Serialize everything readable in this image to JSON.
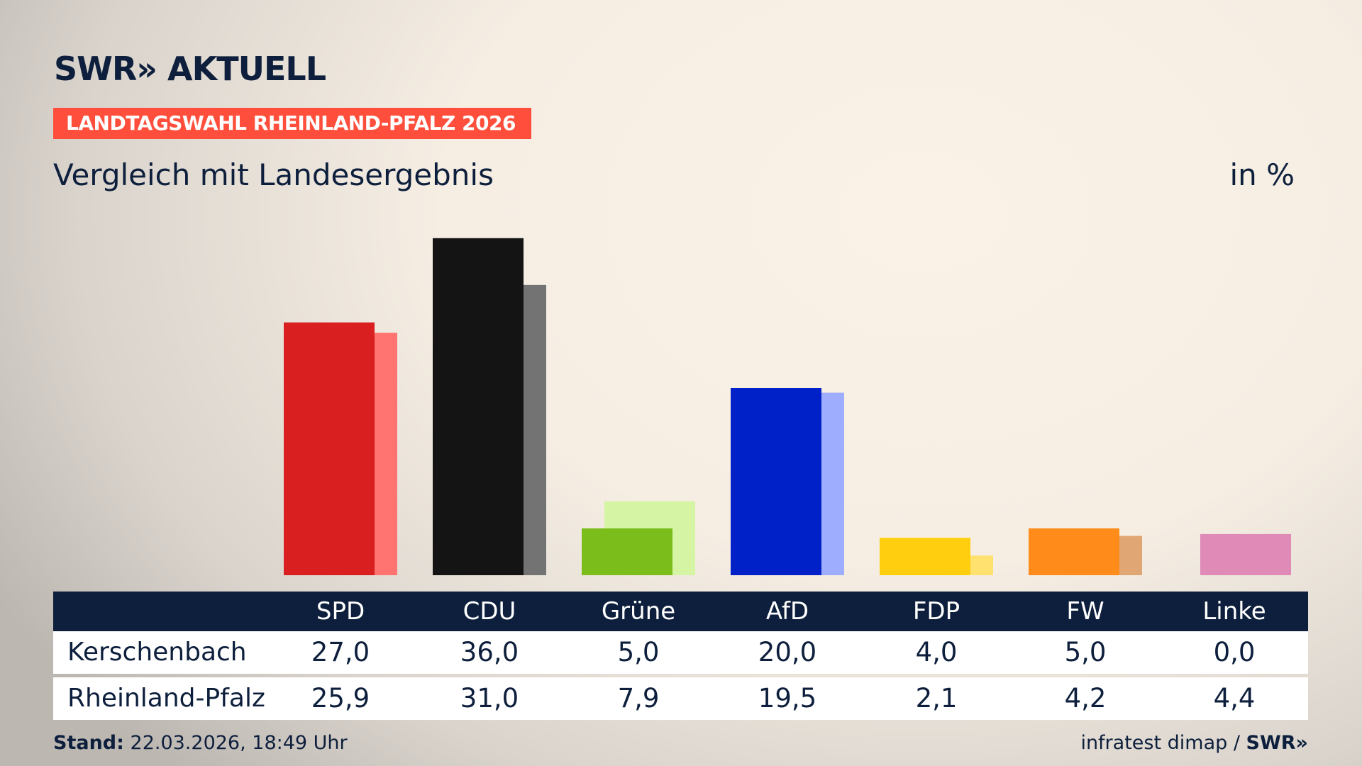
{
  "logo": "SWR» AKTUELL",
  "banner": "LANDTAGSWAHL RHEINLAND-PFALZ 2026",
  "subtitle": "Vergleich mit Landesergebnis",
  "unit": "in %",
  "chart_data": {
    "type": "bar",
    "categories": [
      "SPD",
      "CDU",
      "Grüne",
      "AfD",
      "FDP",
      "FW",
      "Linke"
    ],
    "series": [
      {
        "name": "Kerschenbach",
        "values": [
          27.0,
          36.0,
          5.0,
          20.0,
          4.0,
          5.0,
          0.0
        ],
        "colors": [
          "#d91f20",
          "#141414",
          "#7bbd1a",
          "#0021c8",
          "#ffcf0f",
          "#ff8c1a",
          "#c8589a"
        ]
      },
      {
        "name": "Rheinland-Pfalz",
        "values": [
          25.9,
          31.0,
          7.9,
          19.5,
          2.1,
          4.2,
          4.4
        ],
        "colors": [
          "#ff7470",
          "#737373",
          "#d5f5a5",
          "#9fadff",
          "#ffe170",
          "#e0a774",
          "#e08ab8"
        ]
      }
    ],
    "display": [
      "27,0",
      "36,0",
      "5,0",
      "20,0",
      "4,0",
      "5,0",
      "0,0",
      "25,9",
      "31,0",
      "7,9",
      "19,5",
      "2,1",
      "4,2",
      "4,4"
    ]
  },
  "table": {
    "rows": [
      {
        "label": "Kerschenbach",
        "values": [
          "27,0",
          "36,0",
          "5,0",
          "20,0",
          "4,0",
          "5,0",
          "0,0"
        ]
      },
      {
        "label": "Rheinland-Pfalz",
        "values": [
          "25,9",
          "31,0",
          "7,9",
          "19,5",
          "2,1",
          "4,2",
          "4,4"
        ]
      }
    ]
  },
  "footer": {
    "stand_label": "Stand:",
    "stand_value": "22.03.2026, 18:49 Uhr",
    "source": "infratest dimap / ",
    "source_logo": "SWR»"
  }
}
